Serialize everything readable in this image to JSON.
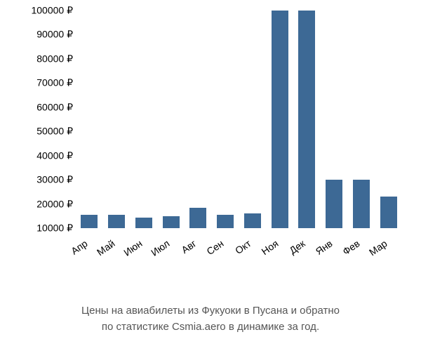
{
  "chart": {
    "type": "bar",
    "categories": [
      "Апр",
      "Май",
      "Июн",
      "Июл",
      "Авг",
      "Сен",
      "Окт",
      "Ноя",
      "Дек",
      "Янв",
      "Фев",
      "Мар"
    ],
    "values": [
      15500,
      15500,
      14500,
      15000,
      18500,
      15500,
      16000,
      100000,
      100000,
      30000,
      30000,
      23000
    ],
    "bar_color": "#3d6995",
    "background_color": "#ffffff",
    "y_ticks": [
      10000,
      20000,
      30000,
      40000,
      50000,
      60000,
      70000,
      80000,
      90000,
      100000
    ],
    "y_tick_labels": [
      "10000 ₽",
      "20000 ₽",
      "30000 ₽",
      "40000 ₽",
      "50000 ₽",
      "60000 ₽",
      "70000 ₽",
      "80000 ₽",
      "90000 ₽",
      "100000 ₽"
    ],
    "y_min": 10000,
    "y_max": 100000,
    "bar_width_ratio": 0.62,
    "tick_fontsize": 14,
    "tick_color": "#000000",
    "x_label_rotation_deg": -35
  },
  "caption": {
    "line1": "Цены на авиабилеты из Фукуоки в Пусана и обратно",
    "line2": "по статистике Csmia.aero в динамике за год.",
    "color": "#555555",
    "fontsize": 15
  }
}
